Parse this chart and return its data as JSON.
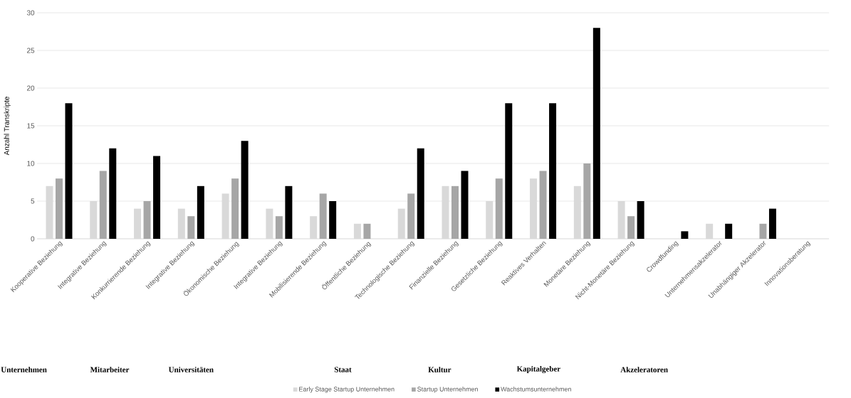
{
  "chart_data": {
    "type": "bar",
    "ylabel": "Anzahl Transkripte",
    "ylim": [
      0,
      30
    ],
    "yticks": [
      0,
      5,
      10,
      15,
      20,
      25,
      30
    ],
    "grid": "y",
    "legend": "bottom",
    "categories": [
      "Kooperative Beziehung",
      "Integrative Beziehung",
      "Konkurrierende Beziehung",
      "Integrative Beziehung",
      "Ökonomische Beziehung",
      "Integrative Beziehung",
      "Mobilisierende Beziehung",
      "Öffentliche Beziehung",
      "Technologische Beziehung",
      "Finanzielle Beziehung",
      "Gesetzliche Beziehung",
      "Reaktives Verhalten",
      "Monetäre Beziehung",
      "Nicht-Monetäre Beziehung",
      "Crowdfunding",
      "Unternehmensakzelerator",
      "Unabhängiger Akzelerator",
      "Innovationsberatung"
    ],
    "series": [
      {
        "name": "Early Stage Startup Unternehmen",
        "color": "#d9d9d9",
        "values": [
          7,
          5,
          4,
          4,
          6,
          4,
          3,
          2,
          4,
          7,
          5,
          8,
          7,
          5,
          null,
          2,
          null,
          null
        ]
      },
      {
        "name": "Startup Unternehmen",
        "color": "#a6a6a6",
        "values": [
          8,
          9,
          5,
          3,
          8,
          3,
          6,
          2,
          6,
          7,
          8,
          9,
          10,
          3,
          null,
          null,
          2,
          null
        ]
      },
      {
        "name": "Wachstumsunternehmen",
        "color": "#000000",
        "values": [
          18,
          12,
          11,
          7,
          13,
          7,
          5,
          null,
          12,
          9,
          18,
          18,
          28,
          5,
          1,
          2,
          4,
          null
        ]
      }
    ],
    "annotations": [
      "Unternehmen",
      "Mitarbeiter",
      "Universitäten",
      "Staat",
      "Kultur",
      "Kapitalgeber",
      "Akzeleratoren"
    ]
  }
}
